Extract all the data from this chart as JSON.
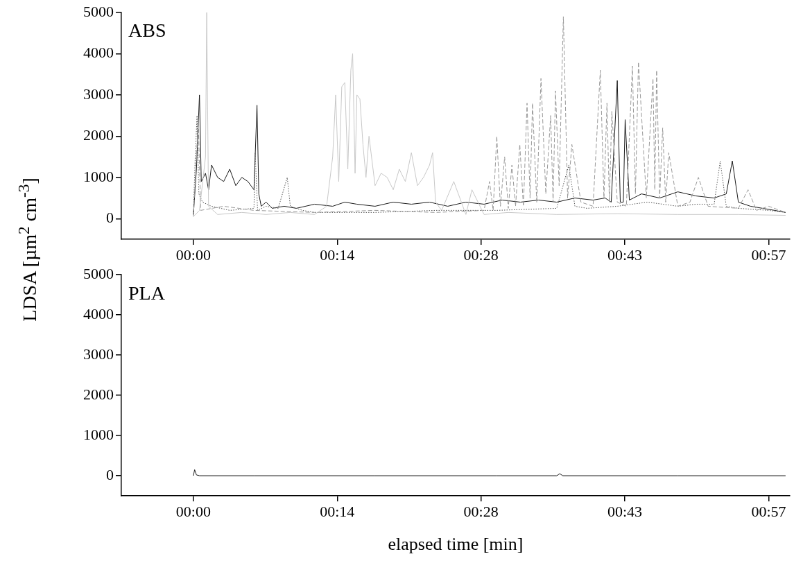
{
  "chart_data": [
    {
      "type": "line",
      "annotations": [
        "ABS"
      ],
      "ylabel": "LDSA [µm$^{2}$ cm$^{-3}$]",
      "xlim": [
        -0.119,
        0.985
      ],
      "xticks": [
        {
          "value": 0,
          "label": "00:00"
        },
        {
          "value": 0.2375,
          "label": "00:14"
        },
        {
          "value": 0.475,
          "label": "00:28"
        },
        {
          "value": 0.7125,
          "label": "00:43"
        },
        {
          "value": 0.95,
          "label": "00:57"
        }
      ],
      "ylim": [
        -500,
        5000
      ],
      "yticks": [
        0,
        1000,
        2000,
        3000,
        4000,
        5000
      ],
      "grid": false,
      "legend": false,
      "marker": "none",
      "series": [
        {
          "color": "#c8c8c8",
          "line_style": "solid",
          "x": [
            0.0,
            0.01,
            0.02,
            0.022,
            0.025,
            0.04,
            0.08,
            0.12,
            0.16,
            0.2,
            0.22,
            0.23,
            0.235,
            0.24,
            0.245,
            0.25,
            0.255,
            0.26,
            0.263,
            0.267,
            0.27,
            0.275,
            0.28,
            0.285,
            0.29,
            0.3,
            0.31,
            0.32,
            0.33,
            0.34,
            0.35,
            0.36,
            0.37,
            0.38,
            0.39,
            0.395,
            0.4,
            0.41,
            0.43,
            0.45,
            0.46,
            0.48,
            0.52,
            0.6,
            0.7,
            0.8,
            0.9,
            0.978
          ],
          "values": [
            50,
            200,
            1500,
            5000,
            300,
            100,
            150,
            100,
            150,
            100,
            300,
            1500,
            3000,
            900,
            3200,
            3300,
            1200,
            3600,
            4000,
            1100,
            3000,
            2900,
            1800,
            1000,
            2000,
            800,
            1100,
            1000,
            700,
            1200,
            900,
            1600,
            800,
            1000,
            1300,
            1600,
            400,
            200,
            900,
            100,
            700,
            100,
            150,
            100,
            120,
            100,
            100,
            80
          ]
        },
        {
          "color": "#999999",
          "line_style": "dashed",
          "x": [
            0.0,
            0.008,
            0.012,
            0.05,
            0.1,
            0.2,
            0.3,
            0.4,
            0.48,
            0.489,
            0.495,
            0.501,
            0.507,
            0.514,
            0.52,
            0.526,
            0.532,
            0.539,
            0.545,
            0.551,
            0.556,
            0.56,
            0.567,
            0.574,
            0.582,
            0.59,
            0.594,
            0.598,
            0.604,
            0.611,
            0.618,
            0.625,
            0.64,
            0.66,
            0.672,
            0.678,
            0.683,
            0.687,
            0.691,
            0.7,
            0.715,
            0.725,
            0.73,
            0.735,
            0.748,
            0.759,
            0.762,
            0.765,
            0.77,
            0.775,
            0.78,
            0.785,
            0.8,
            0.82,
            0.834,
            0.85,
            0.9,
            0.916,
            0.93,
            0.95,
            0.978
          ],
          "values": [
            50,
            2400,
            200,
            300,
            200,
            150,
            200,
            150,
            200,
            900,
            200,
            2000,
            300,
            1500,
            250,
            1300,
            300,
            1800,
            300,
            2800,
            500,
            2800,
            400,
            3400,
            600,
            2500,
            400,
            3100,
            800,
            4900,
            500,
            1800,
            400,
            300,
            3600,
            500,
            2800,
            400,
            2600,
            400,
            300,
            3700,
            600,
            3800,
            500,
            3400,
            700,
            3600,
            500,
            2200,
            400,
            1600,
            300,
            400,
            1000,
            300,
            250,
            700,
            200,
            300,
            150
          ]
        },
        {
          "color": "#555555",
          "line_style": "dotted",
          "x": [
            0.0,
            0.003,
            0.006,
            0.009,
            0.015,
            0.03,
            0.06,
            0.1,
            0.102,
            0.106,
            0.12,
            0.14,
            0.155,
            0.16,
            0.18,
            0.2,
            0.3,
            0.4,
            0.5,
            0.6,
            0.62,
            0.63,
            0.65,
            0.7,
            0.75,
            0.8,
            0.83,
            0.86,
            0.87,
            0.88,
            0.9,
            0.95,
            0.978
          ],
          "values": [
            100,
            1500,
            2500,
            600,
            400,
            300,
            200,
            250,
            1600,
            200,
            300,
            250,
            1000,
            300,
            200,
            150,
            150,
            200,
            200,
            250,
            1300,
            300,
            250,
            300,
            400,
            300,
            350,
            350,
            1400,
            300,
            250,
            200,
            150
          ]
        },
        {
          "color": "#1a1a1a",
          "line_style": "solid",
          "x": [
            0.0,
            0.005,
            0.01,
            0.013,
            0.02,
            0.025,
            0.03,
            0.04,
            0.05,
            0.06,
            0.07,
            0.08,
            0.09,
            0.1,
            0.105,
            0.108,
            0.112,
            0.12,
            0.13,
            0.15,
            0.17,
            0.2,
            0.23,
            0.25,
            0.27,
            0.3,
            0.33,
            0.36,
            0.39,
            0.42,
            0.45,
            0.48,
            0.51,
            0.54,
            0.57,
            0.6,
            0.63,
            0.66,
            0.68,
            0.69,
            0.7,
            0.705,
            0.71,
            0.713,
            0.72,
            0.74,
            0.77,
            0.8,
            0.83,
            0.86,
            0.88,
            0.89,
            0.9,
            0.92,
            0.94,
            0.96,
            0.978
          ],
          "values": [
            100,
            1200,
            3000,
            900,
            1100,
            700,
            1300,
            1000,
            900,
            1200,
            800,
            1000,
            900,
            700,
            2750,
            600,
            300,
            400,
            250,
            300,
            250,
            350,
            300,
            400,
            350,
            300,
            400,
            350,
            400,
            300,
            400,
            350,
            450,
            400,
            450,
            400,
            500,
            450,
            500,
            400,
            3350,
            400,
            400,
            2400,
            450,
            600,
            500,
            650,
            550,
            500,
            600,
            1400,
            400,
            300,
            250,
            200,
            150
          ]
        }
      ]
    },
    {
      "type": "line",
      "annotations": [
        "PLA"
      ],
      "xlabel": "elapsed time [min]",
      "xlim": [
        -0.119,
        0.985
      ],
      "xticks": [
        {
          "value": 0,
          "label": "00:00"
        },
        {
          "value": 0.2375,
          "label": "00:14"
        },
        {
          "value": 0.475,
          "label": "00:28"
        },
        {
          "value": 0.7125,
          "label": "00:43"
        },
        {
          "value": 0.95,
          "label": "00:57"
        }
      ],
      "ylim": [
        -500,
        5000
      ],
      "yticks": [
        0,
        1000,
        2000,
        3000,
        4000,
        5000
      ],
      "grid": false,
      "legend": false,
      "marker": "none",
      "series": [
        {
          "color": "#1a1a1a",
          "line_style": "solid",
          "x": [
            0.0,
            0.002,
            0.005,
            0.01,
            0.1,
            0.3,
            0.5,
            0.6,
            0.605,
            0.61,
            0.8,
            0.978
          ],
          "values": [
            0,
            150,
            20,
            0,
            0,
            0,
            0,
            0,
            50,
            0,
            0,
            0
          ]
        }
      ]
    }
  ]
}
